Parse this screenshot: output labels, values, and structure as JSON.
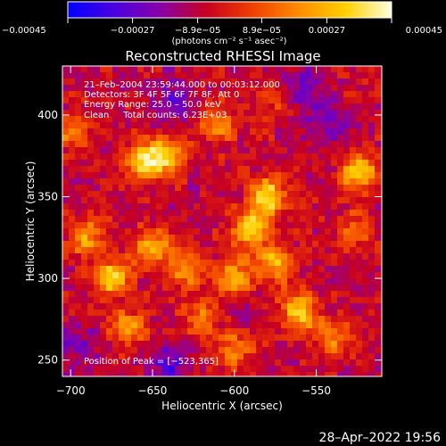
{
  "chart_data": {
    "type": "heatmap",
    "title": "Reconstructed RHESSI Image",
    "xlabel": "Heliocentric X (arcsec)",
    "ylabel": "Heliocentric Y (arcsec)",
    "xlim": [
      -705,
      -510
    ],
    "ylim": [
      240,
      430
    ],
    "x_ticks": [
      -700,
      -650,
      -600,
      -550
    ],
    "x_tick_labels": [
      "−700",
      "−650",
      "−600",
      "−550"
    ],
    "y_ticks": [
      250,
      300,
      350,
      400
    ],
    "y_tick_labels": [
      "250",
      "300",
      "350",
      "400"
    ],
    "colorbar": {
      "range": [
        -0.00045,
        0.00045
      ],
      "colors": [
        "#0000ff",
        "#4a00e0",
        "#8800a8",
        "#c80020",
        "#f04000",
        "#ff8c00",
        "#ffd000",
        "#ffffe0"
      ],
      "ticks": [
        -0.00045,
        -0.00027,
        -8.9e-05,
        8.9e-05,
        0.00027,
        0.00045
      ],
      "tick_labels": [
        "−0.00045",
        "−0.00027",
        "−8.9e−05",
        "8.9e−05",
        "0.00027",
        "0.00045"
      ],
      "unit_label": "(photons cm⁻² s⁻¹ asec⁻²)"
    },
    "annotations": [
      "21–Feb–2004 23:59:44.000 to 00:03:12.000",
      "Detectors: 3F 4F 5F 6F 7F 8F, Att 0",
      "Energy Range: 25.0 – 50.0 keV",
      "Clean     Total counts: 6.23E+03"
    ],
    "peak_label": "Position of Peak = [−523,365]",
    "bright_sources": [
      {
        "x": -700,
        "y": 390,
        "level": 0.5
      },
      {
        "x": -655,
        "y": 372,
        "level": 0.95
      },
      {
        "x": -640,
        "y": 375,
        "level": 0.7
      },
      {
        "x": -690,
        "y": 325,
        "level": 0.65
      },
      {
        "x": -675,
        "y": 300,
        "level": 0.9
      },
      {
        "x": -650,
        "y": 320,
        "level": 0.75
      },
      {
        "x": -630,
        "y": 305,
        "level": 0.6
      },
      {
        "x": -665,
        "y": 270,
        "level": 0.65
      },
      {
        "x": -620,
        "y": 275,
        "level": 0.55
      },
      {
        "x": -600,
        "y": 300,
        "level": 0.7
      },
      {
        "x": -590,
        "y": 330,
        "level": 0.85
      },
      {
        "x": -580,
        "y": 350,
        "level": 1.0
      },
      {
        "x": -575,
        "y": 310,
        "level": 0.7
      },
      {
        "x": -560,
        "y": 280,
        "level": 0.85
      },
      {
        "x": -540,
        "y": 265,
        "level": 0.6
      },
      {
        "x": -523,
        "y": 365,
        "level": 1.0
      },
      {
        "x": -525,
        "y": 330,
        "level": 0.5
      },
      {
        "x": -610,
        "y": 395,
        "level": 0.6
      },
      {
        "x": -575,
        "y": 410,
        "level": 0.4
      },
      {
        "x": -600,
        "y": 255,
        "level": 0.55
      }
    ],
    "dark_sources": [
      {
        "x": -640,
        "y": 410,
        "level": 0.6
      },
      {
        "x": -560,
        "y": 415,
        "level": 0.7
      },
      {
        "x": -700,
        "y": 260,
        "level": 0.55
      },
      {
        "x": -640,
        "y": 245,
        "level": 0.8
      },
      {
        "x": -540,
        "y": 395,
        "level": 0.5
      }
    ]
  },
  "footer_timestamp": "28–Apr–2022 19:56"
}
